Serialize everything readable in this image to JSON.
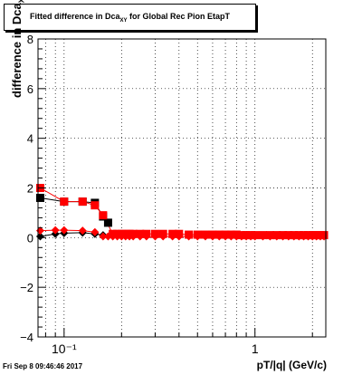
{
  "title_prefix": "Fitted difference in Dca",
  "title_sub": "XY",
  "title_suffix": " for Global Rec Pion EtapT",
  "timestamp": "Fri Sep  8 09:46:46 2017",
  "colors": {
    "black_series": "#000000",
    "red_series": "#ff0000",
    "frame": "#000000"
  },
  "chart_data": {
    "type": "scatter",
    "xlabel": "pT/|q| (GeV/c)",
    "ylabel_prefix": "difference in Dca",
    "ylabel_sub": "XY",
    "x_scale": "log",
    "xlim": [
      0.073,
      2.35
    ],
    "ylim": [
      -4,
      8
    ],
    "yticks": [
      -4,
      -2,
      0,
      2,
      4,
      6,
      8
    ],
    "ytick_labels": [
      "−4",
      "−2",
      "0",
      "2",
      "4",
      "6",
      "8"
    ],
    "xtick_major": [
      0.1,
      1
    ],
    "xtick_labels": [
      "10⁻¹",
      "1"
    ],
    "grid": true,
    "series": [
      {
        "marker": "square",
        "color": "#000000",
        "points": [
          [
            0.075,
            1.6
          ],
          [
            0.1,
            1.45
          ],
          [
            0.125,
            1.45
          ],
          [
            0.145,
            1.4
          ],
          [
            0.16,
            0.85
          ],
          [
            0.17,
            0.6
          ]
        ]
      },
      {
        "marker": "square",
        "color": "#ff0000",
        "points": [
          [
            0.075,
            2.0
          ],
          [
            0.1,
            1.45
          ],
          [
            0.125,
            1.45
          ],
          [
            0.145,
            1.3
          ],
          [
            0.16,
            0.9
          ],
          [
            0.18,
            0.15
          ],
          [
            0.19,
            0.15
          ],
          [
            0.2,
            0.15
          ],
          [
            0.21,
            0.15
          ],
          [
            0.22,
            0.15
          ],
          [
            0.23,
            0.15
          ],
          [
            0.25,
            0.15
          ],
          [
            0.27,
            0.15
          ],
          [
            0.3,
            0.15
          ],
          [
            0.33,
            0.15
          ],
          [
            0.37,
            0.15
          ],
          [
            0.4,
            0.15
          ],
          [
            0.45,
            0.12
          ],
          [
            0.5,
            0.12
          ],
          [
            0.55,
            0.12
          ],
          [
            0.6,
            0.12
          ],
          [
            0.65,
            0.12
          ],
          [
            0.7,
            0.12
          ],
          [
            0.75,
            0.12
          ],
          [
            0.8,
            0.12
          ],
          [
            0.85,
            0.1
          ],
          [
            0.9,
            0.1
          ],
          [
            0.95,
            0.1
          ],
          [
            1.0,
            0.1
          ],
          [
            1.1,
            0.1
          ],
          [
            1.2,
            0.1
          ],
          [
            1.3,
            0.1
          ],
          [
            1.4,
            0.1
          ],
          [
            1.5,
            0.1
          ],
          [
            1.6,
            0.1
          ],
          [
            1.7,
            0.1
          ],
          [
            1.8,
            0.1
          ],
          [
            1.9,
            0.1
          ],
          [
            2.0,
            0.1
          ],
          [
            2.1,
            0.1
          ],
          [
            2.2,
            0.1
          ],
          [
            2.3,
            0.1
          ]
        ]
      },
      {
        "marker": "diamond",
        "color": "#000000",
        "points": [
          [
            0.075,
            0.05
          ],
          [
            0.09,
            0.15
          ],
          [
            0.1,
            0.18
          ],
          [
            0.125,
            0.2
          ],
          [
            0.145,
            0.15
          ],
          [
            0.16,
            0.1
          ]
        ]
      },
      {
        "marker": "diamond",
        "color": "#ff0000",
        "points": [
          [
            0.075,
            0.28
          ],
          [
            0.09,
            0.3
          ],
          [
            0.1,
            0.3
          ],
          [
            0.125,
            0.28
          ],
          [
            0.145,
            0.22
          ],
          [
            0.16,
            0.05
          ],
          [
            0.17,
            0.05
          ],
          [
            0.18,
            0.05
          ],
          [
            0.19,
            0.05
          ],
          [
            0.2,
            0.05
          ],
          [
            0.21,
            0.05
          ],
          [
            0.22,
            0.05
          ],
          [
            0.23,
            0.05
          ],
          [
            0.25,
            0.05
          ],
          [
            0.27,
            0.05
          ],
          [
            0.3,
            0.05
          ],
          [
            0.33,
            0.05
          ],
          [
            0.37,
            0.05
          ],
          [
            0.4,
            0.05
          ],
          [
            0.45,
            0.05
          ],
          [
            0.5,
            0.05
          ],
          [
            0.55,
            0.05
          ],
          [
            0.6,
            0.05
          ],
          [
            0.65,
            0.05
          ],
          [
            0.7,
            0.05
          ],
          [
            0.75,
            0.05
          ],
          [
            0.8,
            0.05
          ],
          [
            0.85,
            0.05
          ],
          [
            0.9,
            0.05
          ],
          [
            0.95,
            0.05
          ],
          [
            1.0,
            0.05
          ],
          [
            1.1,
            0.05
          ],
          [
            1.2,
            0.05
          ],
          [
            1.3,
            0.05
          ],
          [
            1.4,
            0.05
          ],
          [
            1.5,
            0.05
          ],
          [
            1.6,
            0.05
          ],
          [
            1.7,
            0.05
          ],
          [
            1.8,
            0.05
          ],
          [
            1.9,
            0.05
          ],
          [
            2.0,
            0.05
          ],
          [
            2.1,
            0.05
          ],
          [
            2.2,
            0.05
          ],
          [
            2.3,
            0.05
          ]
        ]
      }
    ]
  }
}
